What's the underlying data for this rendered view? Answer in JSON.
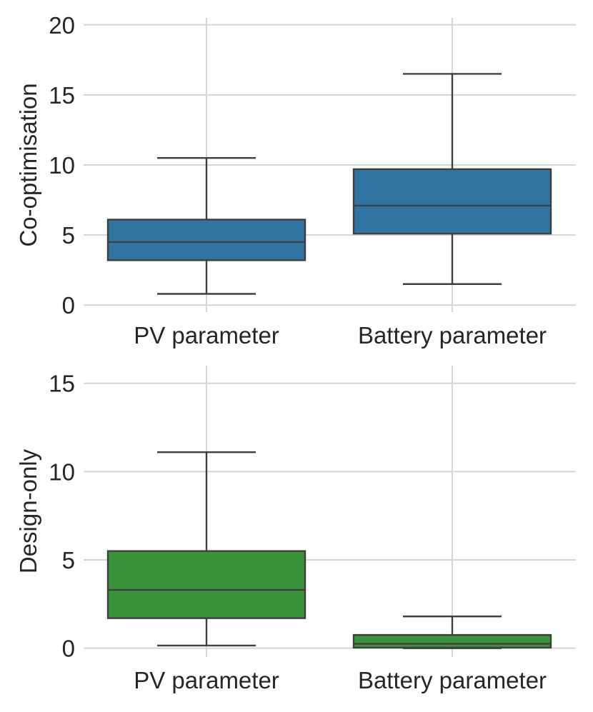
{
  "chart_data": [
    {
      "type": "box",
      "title": "",
      "xlabel": "",
      "ylabel": "Co-optimisation",
      "ylim": [
        -0.5,
        20.5
      ],
      "yticks": [
        0,
        5,
        10,
        15,
        20
      ],
      "ytick_labels": [
        "0",
        "5",
        "10",
        "15",
        "20"
      ],
      "grid": true,
      "color": "#3274a1",
      "categories": [
        "PV parameter",
        "Battery parameter"
      ],
      "boxes": [
        {
          "label": "PV parameter",
          "whislo": 0.8,
          "q1": 3.2,
          "med": 4.5,
          "q3": 6.1,
          "whishi": 10.5
        },
        {
          "label": "Battery parameter",
          "whislo": 1.5,
          "q1": 5.1,
          "med": 7.1,
          "q3": 9.7,
          "whishi": 16.5
        }
      ]
    },
    {
      "type": "box",
      "title": "",
      "xlabel": "",
      "ylabel": "Design-only",
      "ylim": [
        -0.5,
        16.0
      ],
      "yticks": [
        0,
        5,
        10,
        15
      ],
      "ytick_labels": [
        "0",
        "5",
        "10",
        "15"
      ],
      "grid": true,
      "color": "#3a923a",
      "categories": [
        "PV parameter",
        "Battery parameter"
      ],
      "boxes": [
        {
          "label": "PV parameter",
          "whislo": 0.15,
          "q1": 1.7,
          "med": 3.3,
          "q3": 5.5,
          "whishi": 11.1
        },
        {
          "label": "Battery parameter",
          "whislo": 0.0,
          "q1": 0.03,
          "med": 0.25,
          "q3": 0.75,
          "whishi": 1.8
        }
      ]
    }
  ]
}
